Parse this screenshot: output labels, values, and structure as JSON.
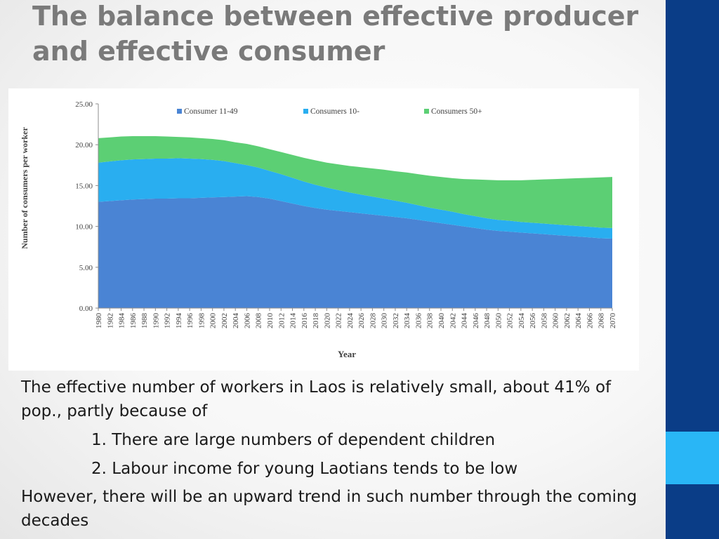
{
  "slide": {
    "title_line1": "The balance between effective producer",
    "title_line2": "and effective consumer",
    "paragraph": "The effective number of workers in Laos is relatively small, about 41% of pop., partly because of",
    "point1": "1. There are large numbers of dependent children",
    "point2": "2. Labour income for young Laotians tends to be low",
    "conclusion": "However, there will be an upward trend in such number through the coming decades"
  },
  "colors": {
    "title": "#7a7a7a",
    "sidebar": "#0a3d87",
    "sidebar_accent": "#29b6f6",
    "series": [
      "#4a84d4",
      "#29aef0",
      "#5ccf74"
    ]
  },
  "chart_data": {
    "type": "area",
    "stacked": true,
    "title": "",
    "xlabel": "Year",
    "ylabel": "Number of consumers per worker",
    "ylim": [
      0,
      25
    ],
    "yticks": [
      "0.00",
      "5.00",
      "10.00",
      "15.00",
      "20.00",
      "25.00"
    ],
    "legend_position": "top",
    "grid": false,
    "x": [
      "1980",
      "1982",
      "1984",
      "1986",
      "1988",
      "1990",
      "1992",
      "1994",
      "1996",
      "1998",
      "2000",
      "2002",
      "2004",
      "2006",
      "2008",
      "2010",
      "2012",
      "2014",
      "2016",
      "2018",
      "2020",
      "2022",
      "2024",
      "2026",
      "2028",
      "2030",
      "2032",
      "2034",
      "2036",
      "2038",
      "2040",
      "2042",
      "2044",
      "2046",
      "2048",
      "2050",
      "2052",
      "2054",
      "2056",
      "2058",
      "2060",
      "2062",
      "2064",
      "2066",
      "2068",
      "2070"
    ],
    "series": [
      {
        "name": "Consumer 11-49",
        "values": [
          13.0,
          13.1,
          13.2,
          13.3,
          13.35,
          13.4,
          13.4,
          13.45,
          13.45,
          13.5,
          13.55,
          13.6,
          13.65,
          13.7,
          13.6,
          13.4,
          13.1,
          12.8,
          12.5,
          12.25,
          12.05,
          11.9,
          11.75,
          11.6,
          11.45,
          11.3,
          11.15,
          11.0,
          10.8,
          10.6,
          10.4,
          10.2,
          10.0,
          9.8,
          9.6,
          9.45,
          9.35,
          9.25,
          9.15,
          9.05,
          8.95,
          8.85,
          8.75,
          8.65,
          8.55,
          8.5
        ]
      },
      {
        "name": "Consumers 10-",
        "values": [
          4.8,
          4.85,
          4.9,
          4.9,
          4.9,
          4.9,
          4.9,
          4.9,
          4.85,
          4.75,
          4.6,
          4.4,
          4.1,
          3.8,
          3.6,
          3.4,
          3.3,
          3.15,
          3.0,
          2.85,
          2.7,
          2.55,
          2.4,
          2.3,
          2.2,
          2.1,
          2.0,
          1.9,
          1.8,
          1.7,
          1.65,
          1.6,
          1.5,
          1.45,
          1.4,
          1.35,
          1.35,
          1.3,
          1.3,
          1.3,
          1.3,
          1.3,
          1.3,
          1.3,
          1.3,
          1.3
        ]
      },
      {
        "name": "Consumers 50+",
        "values": [
          3.0,
          2.95,
          2.9,
          2.85,
          2.8,
          2.75,
          2.7,
          2.6,
          2.6,
          2.55,
          2.55,
          2.55,
          2.55,
          2.6,
          2.6,
          2.65,
          2.7,
          2.8,
          2.9,
          3.0,
          3.05,
          3.15,
          3.25,
          3.35,
          3.45,
          3.55,
          3.6,
          3.7,
          3.8,
          3.9,
          4.0,
          4.1,
          4.3,
          4.5,
          4.7,
          4.85,
          4.95,
          5.1,
          5.25,
          5.4,
          5.55,
          5.7,
          5.85,
          6.0,
          6.15,
          6.25
        ]
      }
    ]
  }
}
